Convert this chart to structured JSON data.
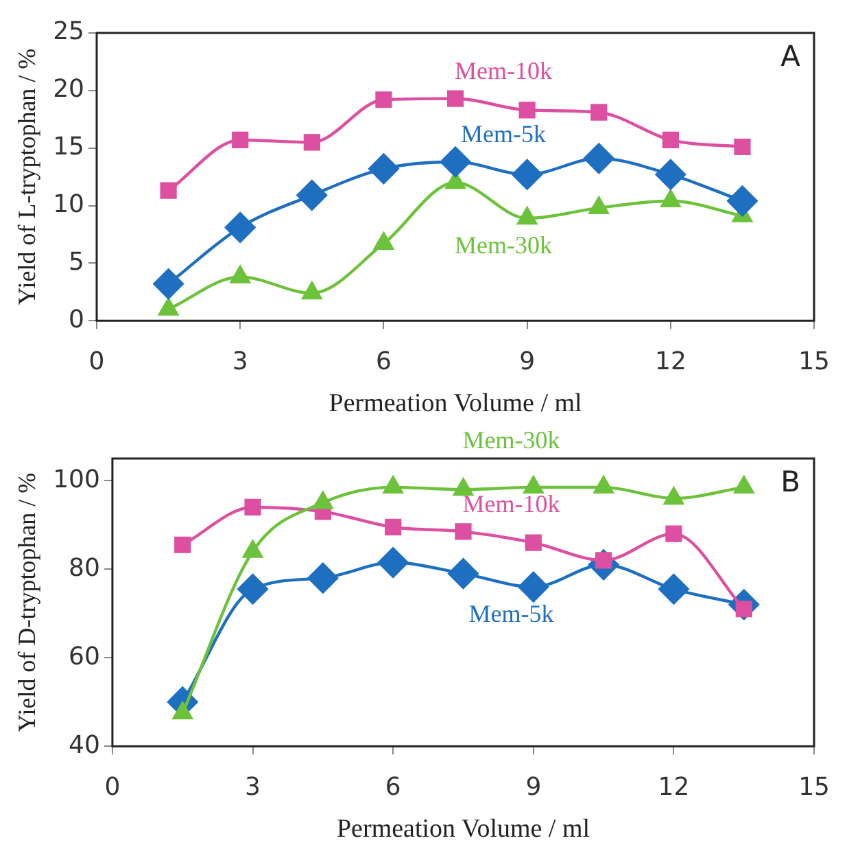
{
  "chart_data": [
    {
      "type": "line",
      "xlabel": "Permeation Volume / ml",
      "ylabel": "Yield of L-tryptophan / %",
      "x": [
        1.5,
        3,
        4.5,
        6,
        7.5,
        9,
        10.5,
        12,
        13.5
      ],
      "xlim": [
        0,
        15
      ],
      "xticks": [
        0,
        3,
        6,
        9,
        12,
        15
      ],
      "ylim": [
        0,
        25
      ],
      "yticks": [
        0,
        5,
        10,
        15,
        20,
        25
      ],
      "grid": false,
      "legend": false,
      "annotations": [
        "A"
      ],
      "series": [
        {
          "name": "Mem-10k",
          "color": "#dd4fa0",
          "marker": "square",
          "values": [
            11.3,
            15.7,
            15.5,
            19.2,
            19.3,
            18.3,
            18.1,
            15.7,
            15.1
          ]
        },
        {
          "name": "Mem-5k",
          "color": "#1f6fc1",
          "marker": "diamond",
          "values": [
            3.2,
            8.1,
            10.9,
            13.2,
            13.8,
            12.7,
            14.1,
            12.7,
            10.4
          ]
        },
        {
          "name": "Mem-30k",
          "color": "#6cc23a",
          "marker": "triangle",
          "values": [
            1.0,
            3.8,
            2.4,
            6.7,
            12.0,
            8.9,
            9.8,
            10.4,
            9.1
          ]
        }
      ]
    },
    {
      "type": "line",
      "xlabel": "Permeation Volume / ml",
      "ylabel": "Yield of D-tryptophan / %",
      "x": [
        1.5,
        3,
        4.5,
        6,
        7.5,
        9,
        10.5,
        12,
        13.5
      ],
      "xlim": [
        0,
        15
      ],
      "xticks": [
        0,
        3,
        6,
        9,
        12,
        15
      ],
      "ylim": [
        40,
        105
      ],
      "yticks": [
        40,
        60,
        80,
        100
      ],
      "grid": false,
      "legend": false,
      "annotations": [
        "B"
      ],
      "series": [
        {
          "name": "Mem-30k",
          "color": "#6cc23a",
          "marker": "triangle",
          "values": [
            47.5,
            84,
            95,
            98.5,
            98,
            98.5,
            98.5,
            96,
            98.5
          ]
        },
        {
          "name": "Mem-10k",
          "color": "#dd4fa0",
          "marker": "square",
          "values": [
            85.5,
            94,
            93,
            89.5,
            88.5,
            86,
            82,
            88,
            71
          ]
        },
        {
          "name": "Mem-5k",
          "color": "#1f6fc1",
          "marker": "diamond",
          "values": [
            50,
            75.5,
            78,
            81.5,
            79,
            76,
            81,
            75.5,
            72
          ]
        }
      ]
    }
  ]
}
